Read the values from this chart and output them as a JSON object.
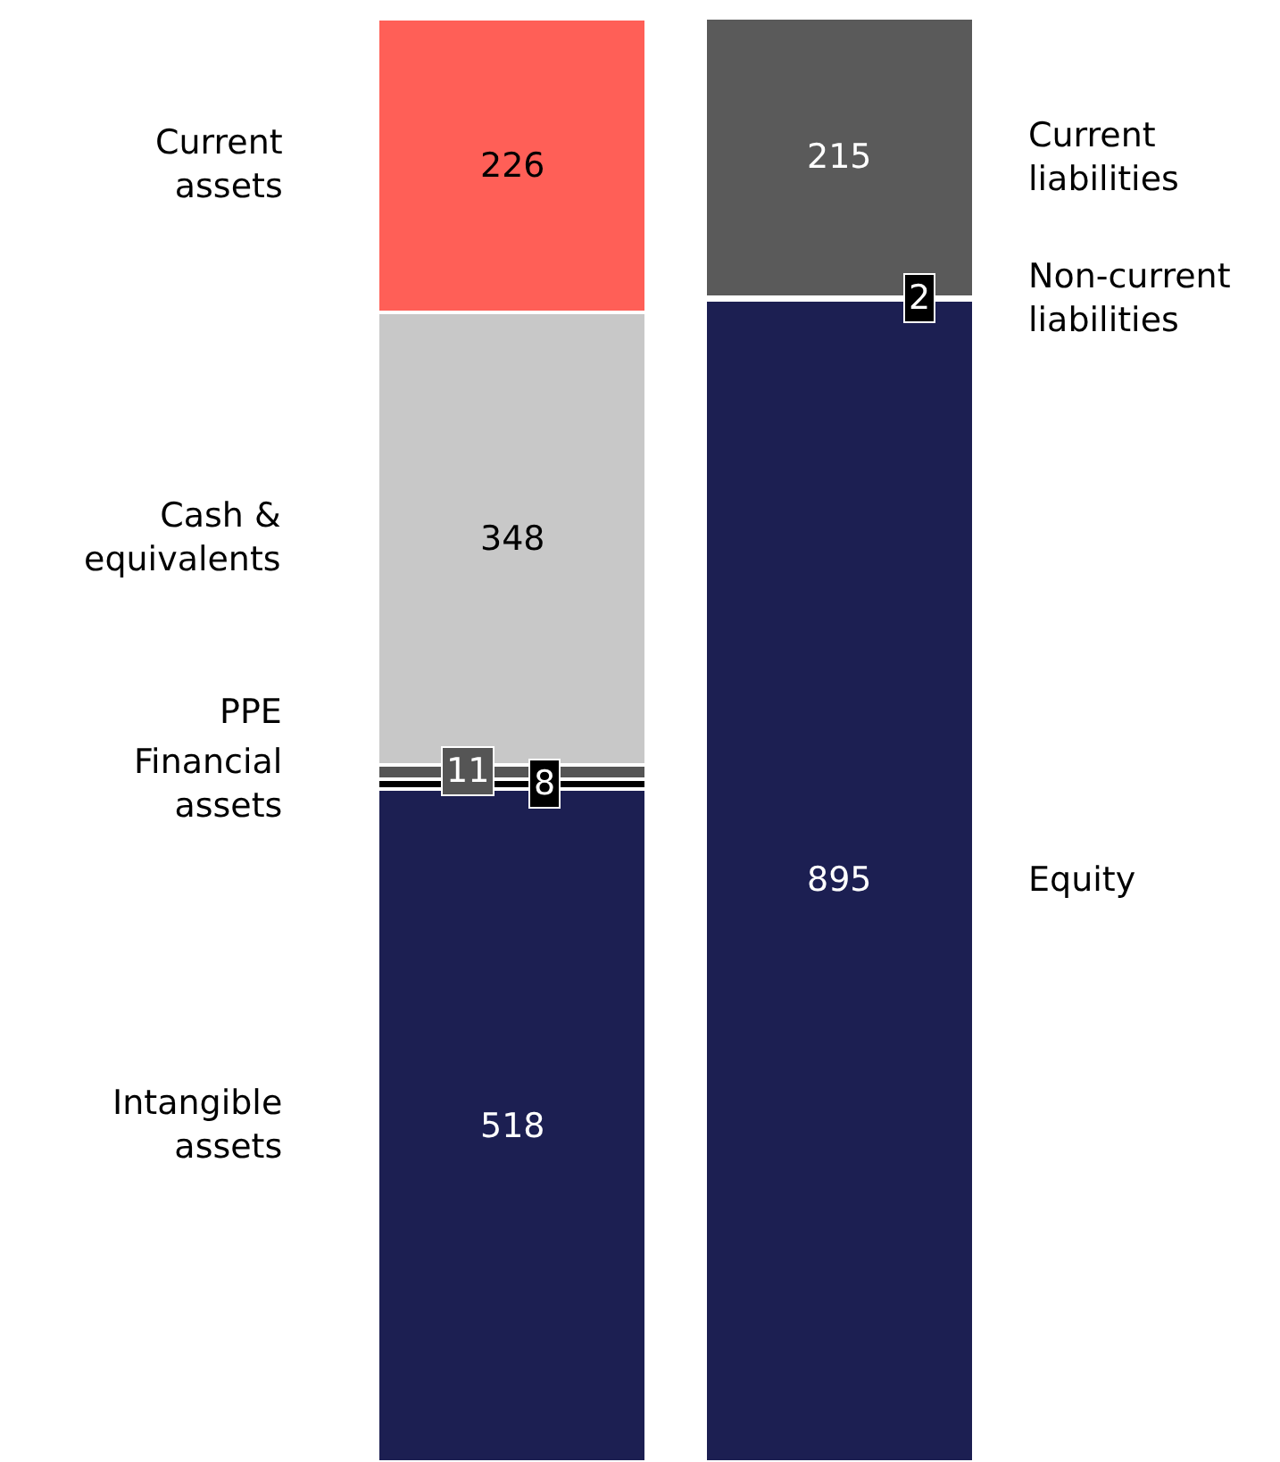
{
  "chart_data": {
    "type": "bar",
    "stacked": true,
    "categories": [
      null,
      null
    ],
    "data_labels": true,
    "legend": false,
    "series": [
      {
        "name": "Intangible assets",
        "color": "#1c1f52",
        "values": [
          518,
          null
        ]
      },
      {
        "name": "Financial assets",
        "color": "#000000",
        "values": [
          8,
          null
        ]
      },
      {
        "name": "PPE",
        "color": "#555555",
        "values": [
          11,
          null
        ]
      },
      {
        "name": "Cash & equivalents",
        "color": "#c8c8c8",
        "values": [
          348,
          null
        ]
      },
      {
        "name": "Current assets",
        "color": "#ff5f57",
        "values": [
          226,
          null
        ]
      },
      {
        "name": "Equity",
        "color": "#1c1f52",
        "values": [
          null,
          895
        ]
      },
      {
        "name": "Non-current liabilities",
        "color": "#000000",
        "values": [
          null,
          2
        ]
      },
      {
        "name": "Current liabilities",
        "color": "#5a5a5a",
        "values": [
          null,
          215
        ]
      }
    ]
  }
}
